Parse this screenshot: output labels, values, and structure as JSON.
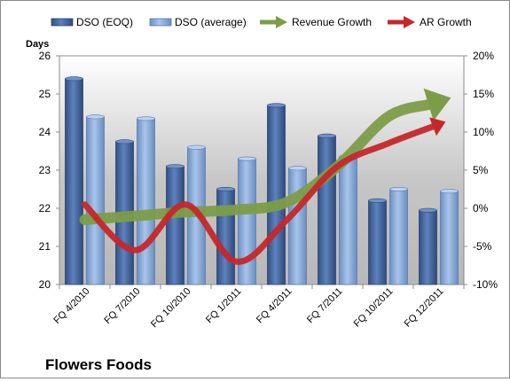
{
  "chart_data": {
    "type": "bar",
    "title": "Flowers Foods",
    "ylabel": "Days",
    "categories": [
      "FQ 4/2010",
      "FQ 7/2010",
      "FQ 10/2010",
      "FQ 1/2011",
      "FQ 4/2011",
      "FQ 7/2011",
      "FQ 10/2011",
      "FQ 12/2011"
    ],
    "y_left": {
      "min": 20,
      "max": 26,
      "ticks": [
        "20",
        "21",
        "22",
        "23",
        "24",
        "25",
        "26"
      ]
    },
    "y_right": {
      "min": -10,
      "max": 20,
      "ticks": [
        "-10%",
        "-5%",
        "0%",
        "5%",
        "10%",
        "15%",
        "20%"
      ]
    },
    "series": [
      {
        "name": "DSO (EOQ)",
        "axis": "left",
        "kind": "bar",
        "color": "#4a6ea8",
        "values": [
          25.4,
          23.75,
          23.1,
          22.5,
          24.7,
          23.9,
          22.2,
          21.95
        ]
      },
      {
        "name": "DSO (average)",
        "axis": "left",
        "kind": "bar",
        "color": "#86a9d6",
        "values": [
          24.4,
          24.35,
          23.6,
          23.3,
          23.05,
          23.35,
          22.5,
          22.45
        ]
      },
      {
        "name": "Revenue Growth",
        "axis": "right",
        "kind": "arrow-line",
        "color": "#7c9d48",
        "values": [
          -1.5,
          -1.0,
          -0.5,
          -0.2,
          0.8,
          5.5,
          12.0,
          14.0
        ]
      },
      {
        "name": "AR Growth",
        "axis": "right",
        "kind": "arrow-line",
        "color": "#c5272b",
        "values": [
          0.5,
          -5.5,
          0.5,
          -7.0,
          -1.5,
          5.5,
          8.5,
          11.0
        ]
      }
    ],
    "grid": false,
    "legend": "top"
  }
}
